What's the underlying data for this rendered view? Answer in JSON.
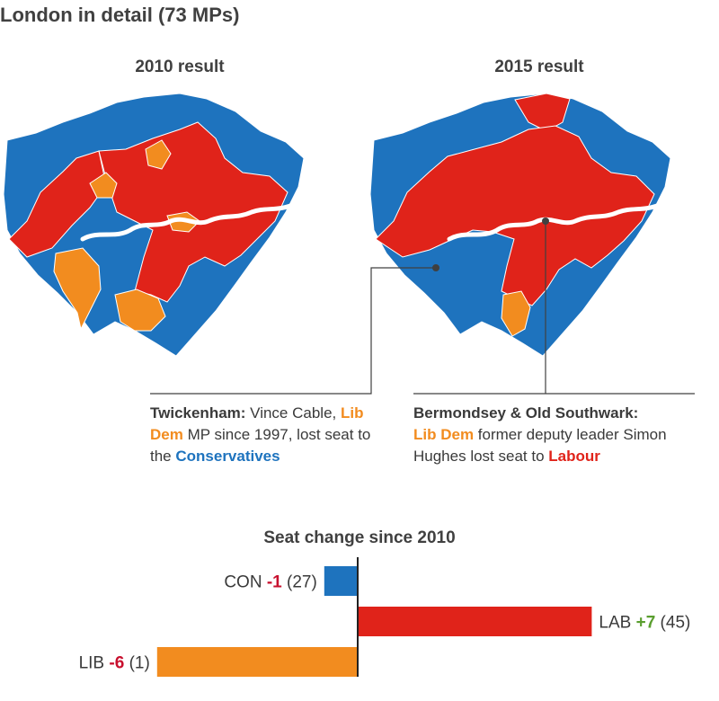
{
  "title": "London in detail (73 MPs)",
  "maps": [
    {
      "title": "2010 result"
    },
    {
      "title": "2015 result"
    }
  ],
  "colors": {
    "CON": "#1e73be",
    "LAB": "#e0231a",
    "LIB": "#f28c1f",
    "river": "#ffffff"
  },
  "callouts": {
    "twickenham": {
      "seat": "Twickenham:",
      "text1": " Vince Cable, ",
      "party": "Lib Dem",
      "text2": " MP since 1997, lost seat to the ",
      "gainer": "Conservatives"
    },
    "bermondsey": {
      "seat": "Bermondsey & Old Southwark:",
      "party": "Lib Dem",
      "text1": " former deputy leader Simon Hughes lost seat to ",
      "gainer": "Labour"
    }
  },
  "chart_data": {
    "type": "bar",
    "title": "Seat change since 2010",
    "categories": [
      "CON",
      "LAB",
      "LIB"
    ],
    "values": [
      -1,
      7,
      -6
    ],
    "value_labels": [
      "-1",
      "+7",
      "-6"
    ],
    "seats_2015": [
      "(27)",
      "(45)",
      "(1)"
    ],
    "bar_colors": [
      "#1e73be",
      "#e0231a",
      "#f28c1f"
    ],
    "value_label_colors": [
      "#c8102e",
      "#5a9e2f",
      "#c8102e"
    ]
  }
}
